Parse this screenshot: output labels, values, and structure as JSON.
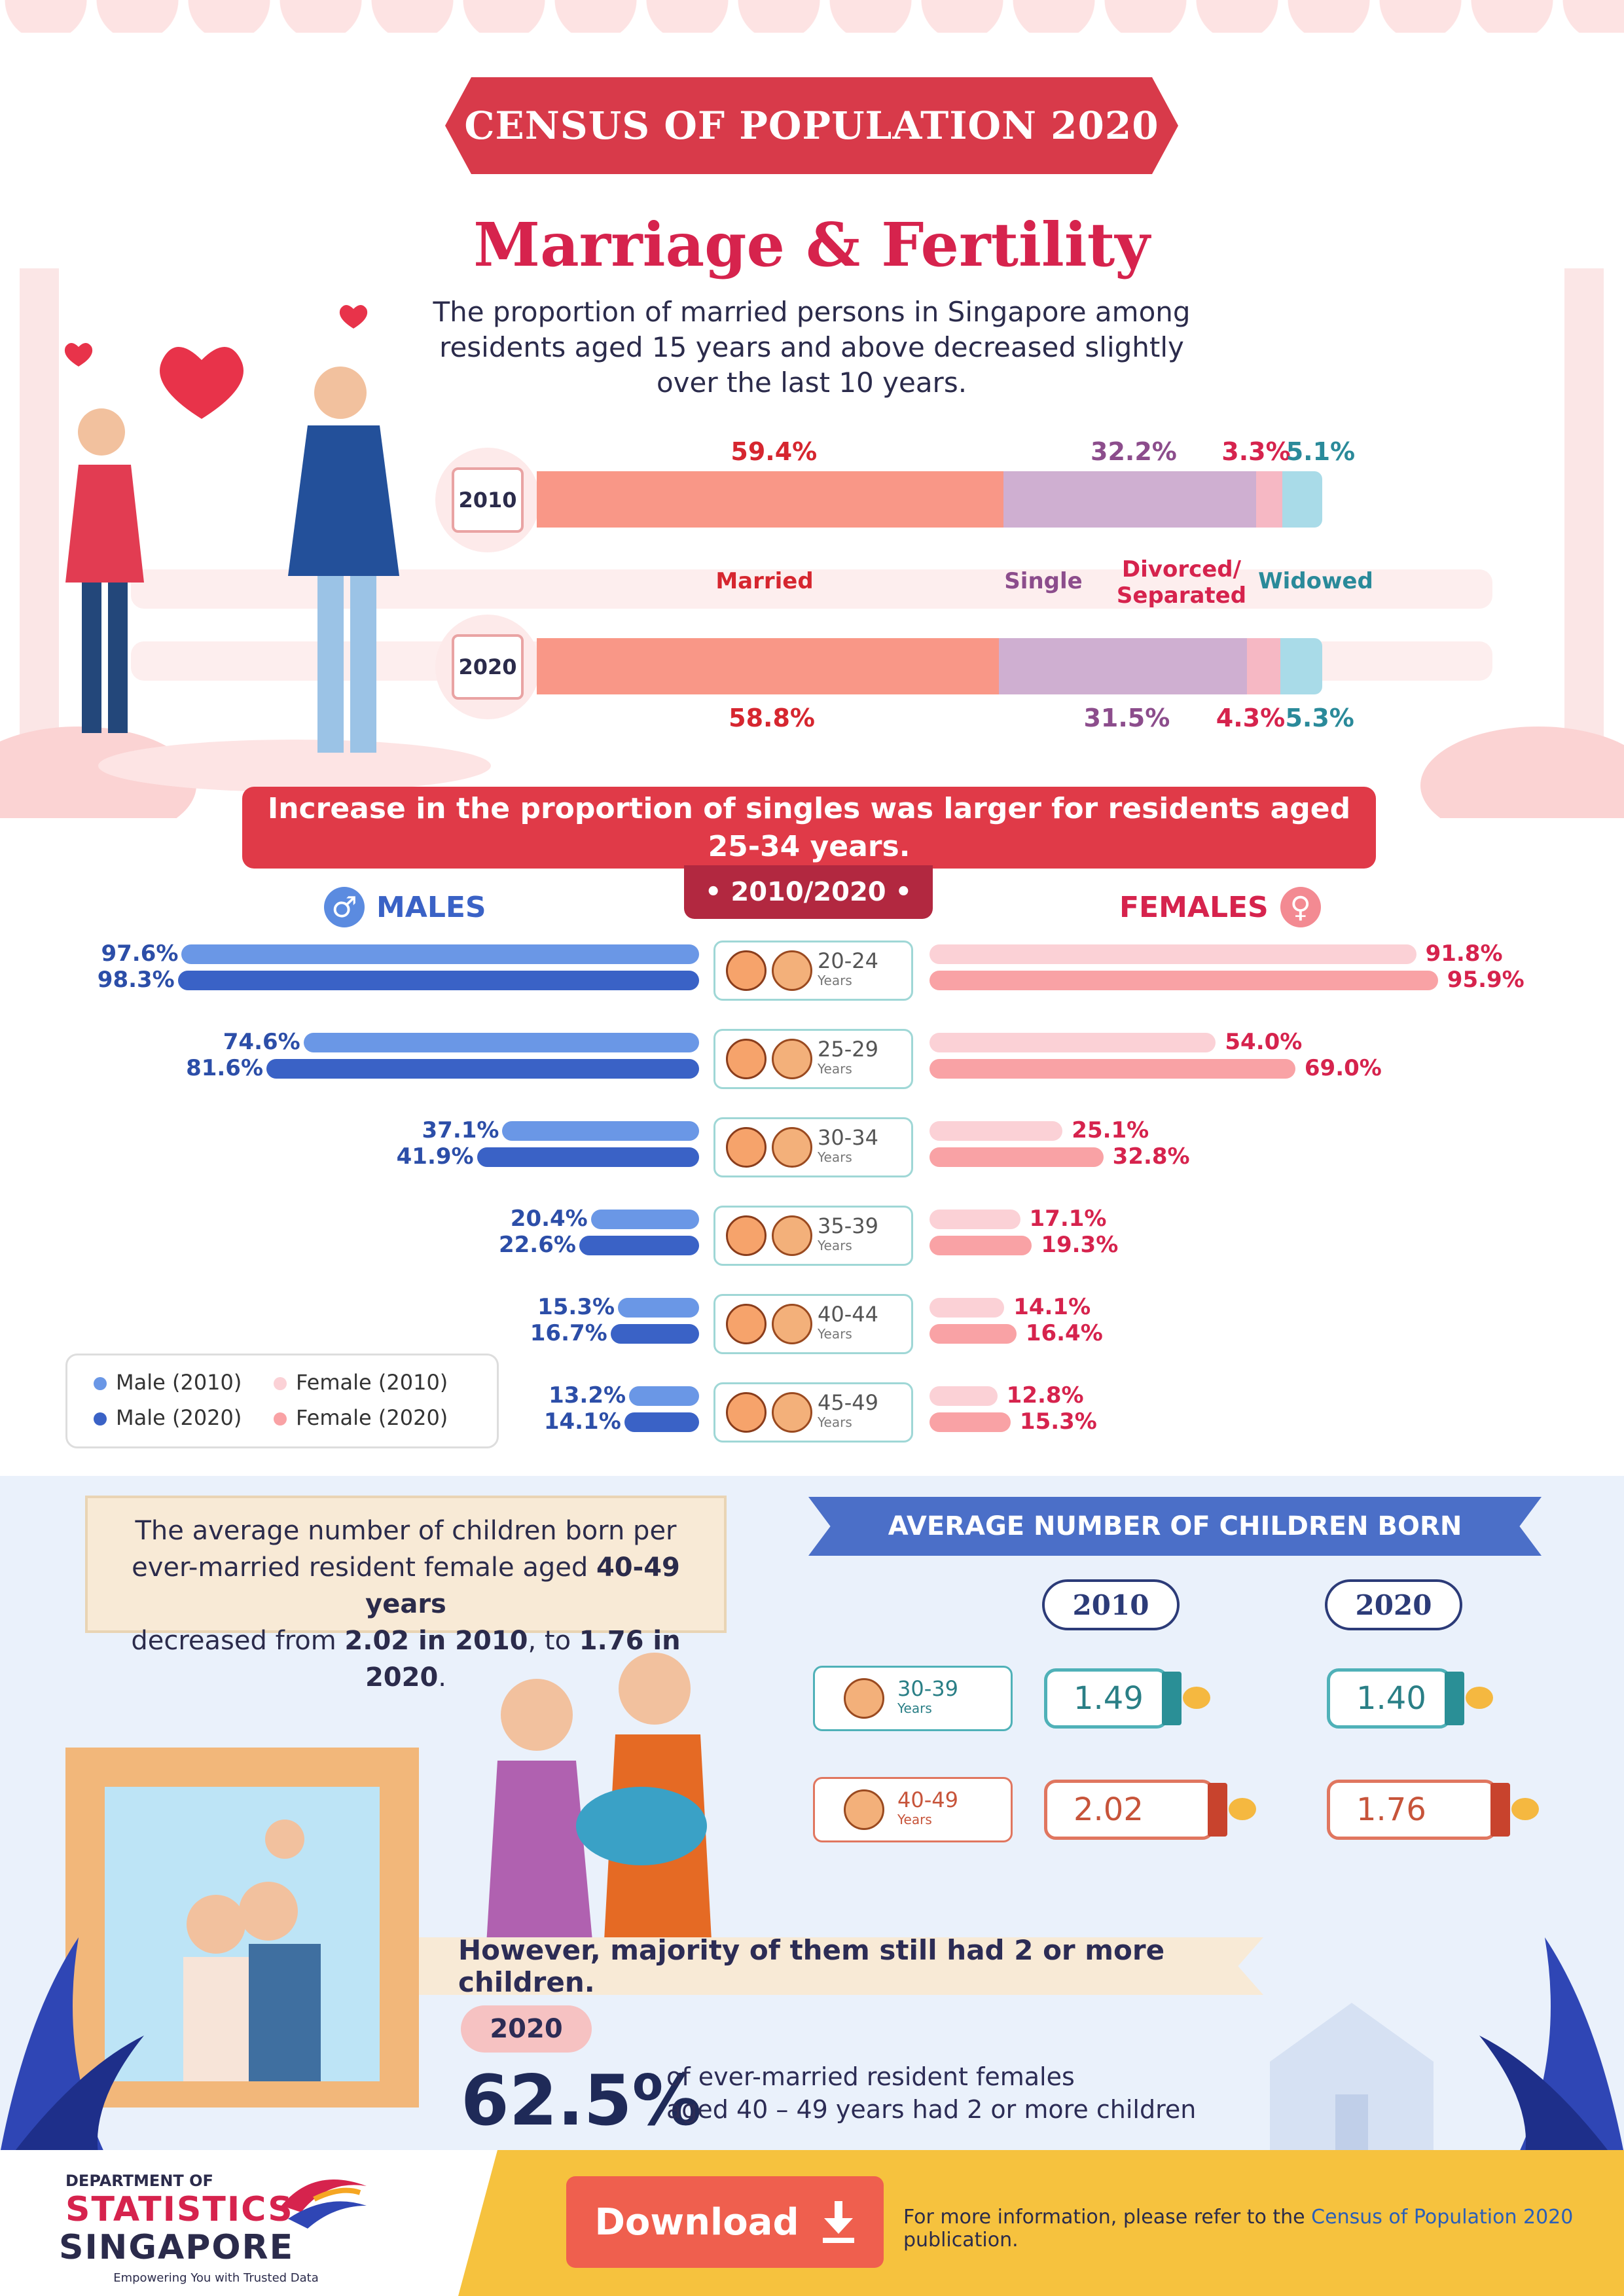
{
  "header": {
    "banner": "CENSUS OF POPULATION 2020",
    "title": "Marriage & Fertility",
    "intro": "The proportion of married persons in Singapore among residents aged 15 years and above decreased slightly over the last 10 years."
  },
  "marital": {
    "categories": [
      "Married",
      "Single",
      "Divorced/ Separated",
      "Widowed"
    ],
    "colors": [
      "#f99787",
      "#cfafd1",
      "#f6b8c4",
      "#a9dbe8"
    ],
    "label_colors": [
      "#d6262f",
      "#8c4d8c",
      "#d6234d",
      "#2a8a9a"
    ],
    "years": [
      {
        "year": "2010",
        "values": [
          59.4,
          32.2,
          3.3,
          5.1
        ],
        "labels": [
          "59.4%",
          "32.2%",
          "3.3%",
          "5.1%"
        ]
      },
      {
        "year": "2020",
        "values": [
          58.8,
          31.5,
          4.3,
          5.3
        ],
        "labels": [
          "58.8%",
          "31.5%",
          "4.3%",
          "5.3%"
        ]
      }
    ]
  },
  "singles": {
    "banner": "Increase in the proportion of singles was larger for residents aged 25-34 years.",
    "year_tab": "• 2010/2020 •",
    "males_label": "MALES",
    "females_label": "FEMALES",
    "male_symbol": "♂",
    "female_symbol": "♀",
    "colors": {
      "male_2010": "#6a97e6",
      "male_2020": "#3a62c6",
      "female_2010": "#fbd1d6",
      "female_2020": "#f9a2a5"
    },
    "legend": [
      "Male (2010)",
      "Male (2020)",
      "Female (2010)",
      "Female (2020)"
    ],
    "age_unit": "Years",
    "groups": [
      {
        "age": "20-24",
        "m2010": 97.6,
        "m2020": 98.3,
        "f2010": 91.8,
        "f2020": 95.9,
        "m2010_l": "97.6%",
        "m2020_l": "98.3%",
        "f2010_l": "91.8%",
        "f2020_l": "95.9%"
      },
      {
        "age": "25-29",
        "m2010": 74.6,
        "m2020": 81.6,
        "f2010": 54.0,
        "f2020": 69.0,
        "m2010_l": "74.6%",
        "m2020_l": "81.6%",
        "f2010_l": "54.0%",
        "f2020_l": "69.0%"
      },
      {
        "age": "30-34",
        "m2010": 37.1,
        "m2020": 41.9,
        "f2010": 25.1,
        "f2020": 32.8,
        "m2010_l": "37.1%",
        "m2020_l": "41.9%",
        "f2010_l": "25.1%",
        "f2020_l": "32.8%"
      },
      {
        "age": "35-39",
        "m2010": 20.4,
        "m2020": 22.6,
        "f2010": 17.1,
        "f2020": 19.3,
        "m2010_l": "20.4%",
        "m2020_l": "22.6%",
        "f2010_l": "17.1%",
        "f2020_l": "19.3%"
      },
      {
        "age": "40-44",
        "m2010": 15.3,
        "m2020": 16.7,
        "f2010": 14.1,
        "f2020": 16.4,
        "m2010_l": "15.3%",
        "m2020_l": "16.7%",
        "f2010_l": "14.1%",
        "f2020_l": "16.4%"
      },
      {
        "age": "45-49",
        "m2010": 13.2,
        "m2020": 14.1,
        "f2010": 12.8,
        "f2020": 15.3,
        "m2010_l": "13.2%",
        "m2020_l": "14.1%",
        "f2010_l": "12.8%",
        "f2020_l": "15.3%"
      }
    ]
  },
  "fertility": {
    "info_line1": "The average number of children born per",
    "info_line2a": "ever-married resident female aged ",
    "info_line2b": "40-49 years",
    "info_line3a": "decreased from ",
    "info_line3b": "2.02 in 2010",
    "info_line3c": ", to ",
    "info_line3d": "1.76 in 2020",
    "info_line3e": ".",
    "banner": "AVERAGE NUMBER OF CHILDREN BORN",
    "years": [
      "2010",
      "2020"
    ],
    "age_unit": "Years",
    "rows": [
      {
        "age": "30-39",
        "values": [
          "1.49",
          "1.40"
        ]
      },
      {
        "age": "40-49",
        "values": [
          "2.02",
          "1.76"
        ]
      }
    ],
    "majority": "However, majority of them still had 2 or more children.",
    "year_badge": "2020",
    "big_pct": "62.5%",
    "big_desc1": "of ever-married resident females",
    "big_desc2": "aged 40 – 49 years had 2 or more children"
  },
  "footer": {
    "dept": "DEPARTMENT OF",
    "logo1": "STATISTICS",
    "logo2": "SINGAPORE",
    "tagline": "Empowering You with Trusted Data",
    "download": "Download",
    "note_pre": "For more information, please refer to the ",
    "note_link": "Census of Population 2020",
    "note_post": " publication."
  },
  "chart_data": [
    {
      "type": "bar",
      "categories": [
        "2010",
        "2020"
      ],
      "series": [
        {
          "name": "Married",
          "values": [
            59.4,
            58.8
          ]
        },
        {
          "name": "Single",
          "values": [
            32.2,
            31.5
          ]
        },
        {
          "name": "Divorced/ Separated",
          "values": [
            3.3,
            4.3
          ]
        },
        {
          "name": "Widowed",
          "values": [
            5.1,
            5.3
          ]
        }
      ]
    },
    {
      "type": "bar",
      "categories": [
        "20-24",
        "25-29",
        "30-34",
        "35-39",
        "40-44",
        "45-49"
      ],
      "series": [
        {
          "name": "Male (2010)",
          "values": [
            97.6,
            74.6,
            37.1,
            20.4,
            15.3,
            13.2
          ]
        },
        {
          "name": "Male (2020)",
          "values": [
            98.3,
            81.6,
            41.9,
            22.6,
            16.7,
            14.1
          ]
        },
        {
          "name": "Female (2010)",
          "values": [
            91.8,
            54.0,
            25.1,
            17.1,
            14.1,
            12.8
          ]
        },
        {
          "name": "Female (2020)",
          "values": [
            95.9,
            69.0,
            32.8,
            19.3,
            16.4,
            15.3
          ]
        }
      ]
    },
    {
      "type": "table",
      "title": "AVERAGE NUMBER OF CHILDREN BORN",
      "categories": [
        "30-39",
        "40-49"
      ],
      "series": [
        {
          "name": "2010",
          "values": [
            1.49,
            2.02
          ]
        },
        {
          "name": "2020",
          "values": [
            1.4,
            1.76
          ]
        }
      ]
    }
  ]
}
